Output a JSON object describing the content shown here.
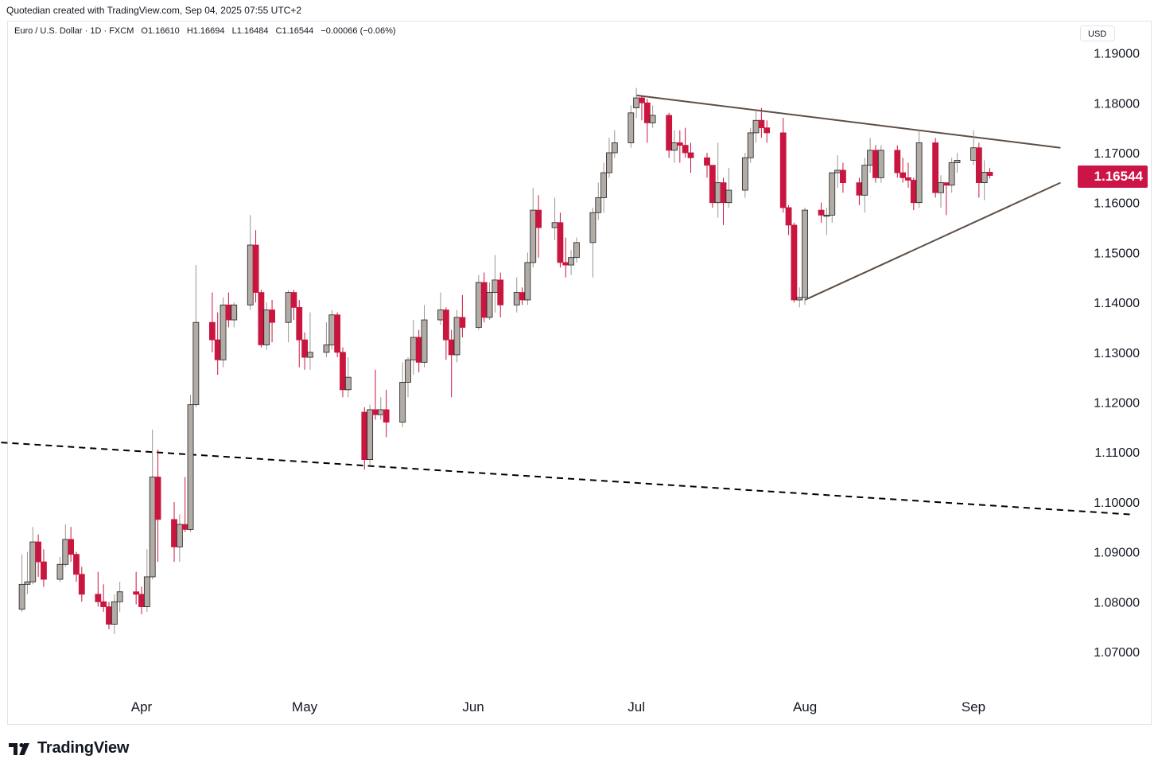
{
  "header": {
    "caption": "Quotedian created with TradingView.com, Sep 04, 2025 07:55 UTC+2"
  },
  "legend": {
    "symbol": "Euro / U.S. Dollar · 1D · FXCM",
    "open": "O1.16610",
    "high": "H1.16694",
    "low": "L1.16484",
    "close": "C1.16544",
    "change": "−0.00066 (−0.06%)"
  },
  "currency_button": "USD",
  "last_price_label": "1.16544",
  "brand": {
    "name": "TradingView",
    "logo_icon": "tradingview-logo-icon"
  },
  "colors": {
    "up": "#b2aca6",
    "down": "#c8163f",
    "trendline": "#5d4e45",
    "support": "#000000",
    "price_tag": "#cd1447"
  },
  "chart_data": {
    "type": "candlestick",
    "title": "",
    "ylabel": "USD",
    "ylim": [
      1.0625,
      1.1975
    ],
    "y_ticks": [
      "1.19000",
      "1.18000",
      "1.17000",
      "1.16000",
      "1.15000",
      "1.14000",
      "1.13000",
      "1.12000",
      "1.11000",
      "1.10000",
      "1.09000",
      "1.08000",
      "1.07000"
    ],
    "x_ticks": [
      {
        "label": "Apr",
        "x": "2025-04-01"
      },
      {
        "label": "May",
        "x": "2025-05-01"
      },
      {
        "label": "Jun",
        "x": "2025-06-01"
      },
      {
        "label": "Jul",
        "x": "2025-07-01"
      },
      {
        "label": "Aug",
        "x": "2025-08-01"
      },
      {
        "label": "Sep",
        "x": "2025-09-01"
      }
    ],
    "candles": [
      {
        "d": "2025-03-10",
        "o": 1.0785,
        "h": 1.0895,
        "l": 1.078,
        "c": 1.0835
      },
      {
        "d": "2025-03-11",
        "o": 1.0835,
        "h": 1.09,
        "l": 1.0815,
        "c": 1.084
      },
      {
        "d": "2025-03-12",
        "o": 1.084,
        "h": 1.095,
        "l": 1.0835,
        "c": 1.092
      },
      {
        "d": "2025-03-13",
        "o": 1.092,
        "h": 1.0935,
        "l": 1.085,
        "c": 1.088
      },
      {
        "d": "2025-03-14",
        "o": 1.088,
        "h": 1.0905,
        "l": 1.083,
        "c": 1.0845
      },
      {
        "d": "2025-03-17",
        "o": 1.0845,
        "h": 1.089,
        "l": 1.084,
        "c": 1.0875
      },
      {
        "d": "2025-03-18",
        "o": 1.0875,
        "h": 1.0955,
        "l": 1.087,
        "c": 1.0925
      },
      {
        "d": "2025-03-19",
        "o": 1.0925,
        "h": 1.095,
        "l": 1.088,
        "c": 1.0895
      },
      {
        "d": "2025-03-20",
        "o": 1.0895,
        "h": 1.09,
        "l": 1.084,
        "c": 1.0855
      },
      {
        "d": "2025-03-21",
        "o": 1.0855,
        "h": 1.087,
        "l": 1.08,
        "c": 1.0815
      },
      {
        "d": "2025-03-24",
        "o": 1.0815,
        "h": 1.086,
        "l": 1.079,
        "c": 1.08
      },
      {
        "d": "2025-03-25",
        "o": 1.08,
        "h": 1.0835,
        "l": 1.078,
        "c": 1.079
      },
      {
        "d": "2025-03-26",
        "o": 1.079,
        "h": 1.08,
        "l": 1.0745,
        "c": 1.0755
      },
      {
        "d": "2025-03-27",
        "o": 1.0755,
        "h": 1.0815,
        "l": 1.0735,
        "c": 1.08
      },
      {
        "d": "2025-03-28",
        "o": 1.08,
        "h": 1.084,
        "l": 1.078,
        "c": 1.082
      },
      {
        "d": "2025-03-31",
        "o": 1.082,
        "h": 1.086,
        "l": 1.0795,
        "c": 1.0815
      },
      {
        "d": "2025-04-01",
        "o": 1.0815,
        "h": 1.083,
        "l": 1.0775,
        "c": 1.079
      },
      {
        "d": "2025-04-02",
        "o": 1.079,
        "h": 1.0905,
        "l": 1.078,
        "c": 1.085
      },
      {
        "d": "2025-04-03",
        "o": 1.085,
        "h": 1.1145,
        "l": 1.0845,
        "c": 1.105
      },
      {
        "d": "2025-04-04",
        "o": 1.105,
        "h": 1.1105,
        "l": 1.088,
        "c": 1.0965
      },
      {
        "d": "2025-04-07",
        "o": 1.0965,
        "h": 1.1,
        "l": 1.088,
        "c": 1.091
      },
      {
        "d": "2025-04-08",
        "o": 1.091,
        "h": 1.0975,
        "l": 1.088,
        "c": 1.0955
      },
      {
        "d": "2025-04-09",
        "o": 1.0955,
        "h": 1.105,
        "l": 1.094,
        "c": 1.0945
      },
      {
        "d": "2025-04-10",
        "o": 1.0945,
        "h": 1.1215,
        "l": 1.094,
        "c": 1.1195
      },
      {
        "d": "2025-04-11",
        "o": 1.1195,
        "h": 1.1475,
        "l": 1.119,
        "c": 1.136
      },
      {
        "d": "2025-04-14",
        "o": 1.136,
        "h": 1.142,
        "l": 1.13,
        "c": 1.1325
      },
      {
        "d": "2025-04-15",
        "o": 1.1325,
        "h": 1.138,
        "l": 1.1255,
        "c": 1.1285
      },
      {
        "d": "2025-04-16",
        "o": 1.1285,
        "h": 1.141,
        "l": 1.127,
        "c": 1.1395
      },
      {
        "d": "2025-04-17",
        "o": 1.1395,
        "h": 1.142,
        "l": 1.135,
        "c": 1.1365
      },
      {
        "d": "2025-04-18",
        "o": 1.1365,
        "h": 1.14,
        "l": 1.135,
        "c": 1.1395
      },
      {
        "d": "2025-04-21",
        "o": 1.1395,
        "h": 1.1575,
        "l": 1.1385,
        "c": 1.1515
      },
      {
        "d": "2025-04-22",
        "o": 1.1515,
        "h": 1.1545,
        "l": 1.14,
        "c": 1.142
      },
      {
        "d": "2025-04-23",
        "o": 1.142,
        "h": 1.1425,
        "l": 1.131,
        "c": 1.1315
      },
      {
        "d": "2025-04-24",
        "o": 1.1315,
        "h": 1.14,
        "l": 1.1305,
        "c": 1.1385
      },
      {
        "d": "2025-04-25",
        "o": 1.1385,
        "h": 1.1405,
        "l": 1.132,
        "c": 1.136
      },
      {
        "d": "2025-04-28",
        "o": 1.136,
        "h": 1.1425,
        "l": 1.132,
        "c": 1.142
      },
      {
        "d": "2025-04-29",
        "o": 1.142,
        "h": 1.1425,
        "l": 1.1365,
        "c": 1.139
      },
      {
        "d": "2025-04-30",
        "o": 1.139,
        "h": 1.1405,
        "l": 1.127,
        "c": 1.1325
      },
      {
        "d": "2025-05-01",
        "o": 1.1325,
        "h": 1.134,
        "l": 1.1265,
        "c": 1.129
      },
      {
        "d": "2025-05-02",
        "o": 1.129,
        "h": 1.138,
        "l": 1.1265,
        "c": 1.13
      },
      {
        "d": "2025-05-05",
        "o": 1.13,
        "h": 1.136,
        "l": 1.129,
        "c": 1.1315
      },
      {
        "d": "2025-05-06",
        "o": 1.1315,
        "h": 1.1385,
        "l": 1.1305,
        "c": 1.1375
      },
      {
        "d": "2025-05-07",
        "o": 1.1375,
        "h": 1.138,
        "l": 1.129,
        "c": 1.13
      },
      {
        "d": "2025-05-08",
        "o": 1.13,
        "h": 1.131,
        "l": 1.121,
        "c": 1.1225
      },
      {
        "d": "2025-05-09",
        "o": 1.1225,
        "h": 1.129,
        "l": 1.121,
        "c": 1.125
      },
      {
        "d": "2025-05-12",
        "o": 1.118,
        "h": 1.119,
        "l": 1.1065,
        "c": 1.1085
      },
      {
        "d": "2025-05-13",
        "o": 1.1085,
        "h": 1.1195,
        "l": 1.1075,
        "c": 1.1185
      },
      {
        "d": "2025-05-14",
        "o": 1.1185,
        "h": 1.1265,
        "l": 1.1165,
        "c": 1.1175
      },
      {
        "d": "2025-05-15",
        "o": 1.1175,
        "h": 1.121,
        "l": 1.1165,
        "c": 1.1185
      },
      {
        "d": "2025-05-16",
        "o": 1.1185,
        "h": 1.1225,
        "l": 1.113,
        "c": 1.116
      },
      {
        "d": "2025-05-19",
        "o": 1.116,
        "h": 1.128,
        "l": 1.115,
        "c": 1.124
      },
      {
        "d": "2025-05-20",
        "o": 1.124,
        "h": 1.129,
        "l": 1.121,
        "c": 1.1285
      },
      {
        "d": "2025-05-21",
        "o": 1.1285,
        "h": 1.1365,
        "l": 1.1255,
        "c": 1.133
      },
      {
        "d": "2025-05-22",
        "o": 1.133,
        "h": 1.1345,
        "l": 1.126,
        "c": 1.128
      },
      {
        "d": "2025-05-23",
        "o": 1.128,
        "h": 1.1395,
        "l": 1.127,
        "c": 1.1365
      },
      {
        "d": "2025-05-26",
        "o": 1.1365,
        "h": 1.142,
        "l": 1.1355,
        "c": 1.1385
      },
      {
        "d": "2025-05-27",
        "o": 1.1385,
        "h": 1.139,
        "l": 1.1285,
        "c": 1.1325
      },
      {
        "d": "2025-05-28",
        "o": 1.1325,
        "h": 1.1345,
        "l": 1.121,
        "c": 1.1295
      },
      {
        "d": "2025-05-29",
        "o": 1.1295,
        "h": 1.1385,
        "l": 1.128,
        "c": 1.137
      },
      {
        "d": "2025-05-30",
        "o": 1.137,
        "h": 1.1415,
        "l": 1.133,
        "c": 1.135
      },
      {
        "d": "2025-06-02",
        "o": 1.135,
        "h": 1.1455,
        "l": 1.1345,
        "c": 1.144
      },
      {
        "d": "2025-06-03",
        "o": 1.144,
        "h": 1.146,
        "l": 1.136,
        "c": 1.137
      },
      {
        "d": "2025-06-04",
        "o": 1.137,
        "h": 1.144,
        "l": 1.1365,
        "c": 1.142
      },
      {
        "d": "2025-06-05",
        "o": 1.142,
        "h": 1.1495,
        "l": 1.138,
        "c": 1.1445
      },
      {
        "d": "2025-06-06",
        "o": 1.1445,
        "h": 1.146,
        "l": 1.137,
        "c": 1.1395
      },
      {
        "d": "2025-06-09",
        "o": 1.1395,
        "h": 1.145,
        "l": 1.138,
        "c": 1.142
      },
      {
        "d": "2025-06-10",
        "o": 1.142,
        "h": 1.143,
        "l": 1.1395,
        "c": 1.1405
      },
      {
        "d": "2025-06-11",
        "o": 1.1405,
        "h": 1.15,
        "l": 1.1395,
        "c": 1.148
      },
      {
        "d": "2025-06-12",
        "o": 1.148,
        "h": 1.163,
        "l": 1.147,
        "c": 1.1585
      },
      {
        "d": "2025-06-13",
        "o": 1.1585,
        "h": 1.1615,
        "l": 1.149,
        "c": 1.155
      },
      {
        "d": "2025-06-16",
        "o": 1.155,
        "h": 1.161,
        "l": 1.1525,
        "c": 1.156
      },
      {
        "d": "2025-06-17",
        "o": 1.156,
        "h": 1.158,
        "l": 1.147,
        "c": 1.148
      },
      {
        "d": "2025-06-18",
        "o": 1.148,
        "h": 1.153,
        "l": 1.145,
        "c": 1.1475
      },
      {
        "d": "2025-06-19",
        "o": 1.1475,
        "h": 1.1505,
        "l": 1.1455,
        "c": 1.149
      },
      {
        "d": "2025-06-20",
        "o": 1.149,
        "h": 1.153,
        "l": 1.148,
        "c": 1.152
      },
      {
        "d": "2025-06-23",
        "o": 1.152,
        "h": 1.159,
        "l": 1.145,
        "c": 1.158
      },
      {
        "d": "2025-06-24",
        "o": 1.158,
        "h": 1.164,
        "l": 1.1565,
        "c": 1.161
      },
      {
        "d": "2025-06-25",
        "o": 1.161,
        "h": 1.168,
        "l": 1.158,
        "c": 1.166
      },
      {
        "d": "2025-06-26",
        "o": 1.166,
        "h": 1.173,
        "l": 1.165,
        "c": 1.17
      },
      {
        "d": "2025-06-27",
        "o": 1.17,
        "h": 1.1745,
        "l": 1.169,
        "c": 1.172
      },
      {
        "d": "2025-06-30",
        "o": 1.172,
        "h": 1.1795,
        "l": 1.171,
        "c": 1.178
      },
      {
        "d": "2025-07-01",
        "o": 1.179,
        "h": 1.183,
        "l": 1.177,
        "c": 1.181
      },
      {
        "d": "2025-07-02",
        "o": 1.181,
        "h": 1.1815,
        "l": 1.1765,
        "c": 1.18
      },
      {
        "d": "2025-07-03",
        "o": 1.18,
        "h": 1.1808,
        "l": 1.172,
        "c": 1.176
      },
      {
        "d": "2025-07-04",
        "o": 1.176,
        "h": 1.1795,
        "l": 1.175,
        "c": 1.1775
      },
      {
        "d": "2025-07-07",
        "o": 1.1775,
        "h": 1.178,
        "l": 1.169,
        "c": 1.1705
      },
      {
        "d": "2025-07-08",
        "o": 1.1705,
        "h": 1.1745,
        "l": 1.168,
        "c": 1.172
      },
      {
        "d": "2025-07-09",
        "o": 1.172,
        "h": 1.1745,
        "l": 1.168,
        "c": 1.1715
      },
      {
        "d": "2025-07-10",
        "o": 1.1715,
        "h": 1.175,
        "l": 1.169,
        "c": 1.17
      },
      {
        "d": "2025-07-11",
        "o": 1.17,
        "h": 1.172,
        "l": 1.166,
        "c": 1.169
      },
      {
        "d": "2025-07-14",
        "o": 1.169,
        "h": 1.17,
        "l": 1.165,
        "c": 1.1675
      },
      {
        "d": "2025-07-15",
        "o": 1.1675,
        "h": 1.1675,
        "l": 1.159,
        "c": 1.16
      },
      {
        "d": "2025-07-16",
        "o": 1.16,
        "h": 1.172,
        "l": 1.157,
        "c": 1.164
      },
      {
        "d": "2025-07-17",
        "o": 1.164,
        "h": 1.165,
        "l": 1.1555,
        "c": 1.16
      },
      {
        "d": "2025-07-18",
        "o": 1.16,
        "h": 1.167,
        "l": 1.159,
        "c": 1.1625
      },
      {
        "d": "2025-07-21",
        "o": 1.1625,
        "h": 1.17,
        "l": 1.161,
        "c": 1.169
      },
      {
        "d": "2025-07-22",
        "o": 1.169,
        "h": 1.175,
        "l": 1.168,
        "c": 1.174
      },
      {
        "d": "2025-07-23",
        "o": 1.174,
        "h": 1.1785,
        "l": 1.172,
        "c": 1.1765
      },
      {
        "d": "2025-07-24",
        "o": 1.1765,
        "h": 1.179,
        "l": 1.173,
        "c": 1.175
      },
      {
        "d": "2025-07-25",
        "o": 1.175,
        "h": 1.1765,
        "l": 1.172,
        "c": 1.174
      },
      {
        "d": "2025-07-28",
        "o": 1.174,
        "h": 1.177,
        "l": 1.158,
        "c": 1.159
      },
      {
        "d": "2025-07-29",
        "o": 1.159,
        "h": 1.1595,
        "l": 1.1535,
        "c": 1.1555
      },
      {
        "d": "2025-07-30",
        "o": 1.1555,
        "h": 1.156,
        "l": 1.14,
        "c": 1.1405
      },
      {
        "d": "2025-07-31",
        "o": 1.1405,
        "h": 1.143,
        "l": 1.139,
        "c": 1.141
      },
      {
        "d": "2025-08-01",
        "o": 1.141,
        "h": 1.159,
        "l": 1.1395,
        "c": 1.1585
      },
      {
        "d": "2025-08-04",
        "o": 1.1585,
        "h": 1.16,
        "l": 1.156,
        "c": 1.1575
      },
      {
        "d": "2025-08-05",
        "o": 1.1575,
        "h": 1.159,
        "l": 1.1535,
        "c": 1.1575
      },
      {
        "d": "2025-08-06",
        "o": 1.1575,
        "h": 1.166,
        "l": 1.156,
        "c": 1.166
      },
      {
        "d": "2025-08-07",
        "o": 1.166,
        "h": 1.1695,
        "l": 1.163,
        "c": 1.1665
      },
      {
        "d": "2025-08-08",
        "o": 1.1665,
        "h": 1.168,
        "l": 1.162,
        "c": 1.164
      },
      {
        "d": "2025-08-11",
        "o": 1.164,
        "h": 1.165,
        "l": 1.1595,
        "c": 1.1615
      },
      {
        "d": "2025-08-12",
        "o": 1.1615,
        "h": 1.169,
        "l": 1.158,
        "c": 1.1675
      },
      {
        "d": "2025-08-13",
        "o": 1.1675,
        "h": 1.173,
        "l": 1.166,
        "c": 1.1705
      },
      {
        "d": "2025-08-14",
        "o": 1.1705,
        "h": 1.1715,
        "l": 1.164,
        "c": 1.165
      },
      {
        "d": "2025-08-15",
        "o": 1.165,
        "h": 1.1715,
        "l": 1.164,
        "c": 1.1705
      },
      {
        "d": "2025-08-18",
        "o": 1.1705,
        "h": 1.1715,
        "l": 1.165,
        "c": 1.166
      },
      {
        "d": "2025-08-19",
        "o": 1.166,
        "h": 1.169,
        "l": 1.164,
        "c": 1.165
      },
      {
        "d": "2025-08-20",
        "o": 1.165,
        "h": 1.168,
        "l": 1.163,
        "c": 1.1645
      },
      {
        "d": "2025-08-21",
        "o": 1.1645,
        "h": 1.165,
        "l": 1.1585,
        "c": 1.16
      },
      {
        "d": "2025-08-22",
        "o": 1.16,
        "h": 1.1745,
        "l": 1.159,
        "c": 1.172
      },
      {
        "d": "2025-08-25",
        "o": 1.172,
        "h": 1.173,
        "l": 1.161,
        "c": 1.162
      },
      {
        "d": "2025-08-26",
        "o": 1.162,
        "h": 1.1655,
        "l": 1.159,
        "c": 1.164
      },
      {
        "d": "2025-08-27",
        "o": 1.164,
        "h": 1.164,
        "l": 1.1575,
        "c": 1.1635
      },
      {
        "d": "2025-08-28",
        "o": 1.1635,
        "h": 1.169,
        "l": 1.162,
        "c": 1.168
      },
      {
        "d": "2025-08-29",
        "o": 1.168,
        "h": 1.17,
        "l": 1.166,
        "c": 1.1685
      },
      {
        "d": "2025-09-01",
        "o": 1.1685,
        "h": 1.1745,
        "l": 1.1675,
        "c": 1.171
      },
      {
        "d": "2025-09-02",
        "o": 1.171,
        "h": 1.172,
        "l": 1.161,
        "c": 1.164
      },
      {
        "d": "2025-09-03",
        "o": 1.164,
        "h": 1.1685,
        "l": 1.1605,
        "c": 1.1661
      },
      {
        "d": "2025-09-04",
        "o": 1.1661,
        "h": 1.16694,
        "l": 1.16484,
        "c": 1.16544
      }
    ],
    "trendlines": [
      {
        "name": "resistance",
        "style": "solid",
        "from": {
          "x": "2025-07-01",
          "y": 1.1815
        },
        "to": {
          "x": "2025-09-17",
          "y": 1.171
        }
      },
      {
        "name": "support",
        "style": "solid",
        "from": {
          "x": "2025-08-01",
          "y": 1.1405
        },
        "to": {
          "x": "2025-09-17",
          "y": 1.164
        }
      },
      {
        "name": "long-term",
        "style": "dashed",
        "from": {
          "x": "2025-02-26",
          "y": 1.1125
        },
        "to": {
          "x": "2025-09-30",
          "y": 1.0975
        }
      }
    ],
    "last_price": 1.16544,
    "grid": false
  }
}
